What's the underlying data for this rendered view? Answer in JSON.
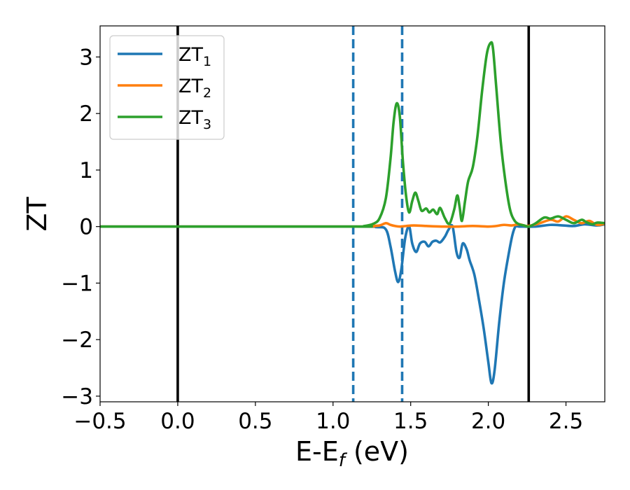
{
  "chart_data": {
    "type": "line",
    "xlabel": {
      "main": "E-E",
      "sub": "f",
      "tail": " (eV)"
    },
    "ylabel": "ZT",
    "xlim": [
      -0.5,
      2.75
    ],
    "ylim": [
      -3.1,
      3.55
    ],
    "xticks": [
      -0.5,
      0.0,
      0.5,
      1.0,
      1.5,
      2.0,
      2.5
    ],
    "xtick_labels": [
      "−0.5",
      "0.0",
      "0.5",
      "1.0",
      "1.5",
      "2.0",
      "2.5"
    ],
    "yticks": [
      -3,
      -2,
      -1,
      0,
      1,
      2,
      3
    ],
    "ytick_labels": [
      "−3",
      "−2",
      "−1",
      "0",
      "1",
      "2",
      "3"
    ],
    "grid": false,
    "legend_position": "upper-left",
    "series": [
      {
        "name": "ZT",
        "name_sub": "1",
        "color": "#1f77b4",
        "x": [
          -0.5,
          1.1,
          1.28,
          1.34,
          1.37,
          1.4,
          1.42,
          1.44,
          1.465,
          1.49,
          1.51,
          1.535,
          1.56,
          1.59,
          1.615,
          1.64,
          1.665,
          1.69,
          1.72,
          1.745,
          1.77,
          1.795,
          1.815,
          1.835,
          1.86,
          1.88,
          1.91,
          1.94,
          1.97,
          2.0,
          2.02,
          2.04,
          2.07,
          2.1,
          2.13,
          2.155,
          2.175,
          2.2,
          2.3,
          2.4,
          2.48,
          2.55,
          2.62,
          2.7,
          2.75
        ],
        "y": [
          0,
          0,
          -0.01,
          -0.05,
          -0.35,
          -0.8,
          -0.98,
          -0.75,
          -0.2,
          0.0,
          -0.3,
          -0.45,
          -0.3,
          -0.27,
          -0.35,
          -0.27,
          -0.25,
          -0.28,
          -0.18,
          -0.05,
          0.0,
          -0.45,
          -0.55,
          -0.3,
          -0.4,
          -0.6,
          -0.85,
          -1.3,
          -1.8,
          -2.4,
          -2.77,
          -2.55,
          -1.7,
          -1.0,
          -0.5,
          -0.15,
          0.0,
          0.0,
          0.0,
          0.03,
          0.02,
          0.01,
          0.04,
          0.02,
          0.04
        ]
      },
      {
        "name": "ZT",
        "name_sub": "2",
        "color": "#ff7f0e",
        "x": [
          -0.5,
          1.1,
          1.24,
          1.3,
          1.34,
          1.37,
          1.4,
          1.43,
          1.47,
          1.52,
          1.6,
          1.7,
          1.8,
          1.9,
          2.0,
          2.05,
          2.1,
          2.15,
          2.2,
          2.25,
          2.32,
          2.4,
          2.45,
          2.5,
          2.55,
          2.6,
          2.65,
          2.7,
          2.75
        ],
        "y": [
          0,
          0,
          0.01,
          0.02,
          0.06,
          0.03,
          0.01,
          0.0,
          0.01,
          0.02,
          0.01,
          0.0,
          0.0,
          0.01,
          0.0,
          0.01,
          0.03,
          0.02,
          0.04,
          0.01,
          0.05,
          0.12,
          0.09,
          0.18,
          0.12,
          0.06,
          0.1,
          0.03,
          0.05
        ]
      },
      {
        "name": "ZT",
        "name_sub": "3",
        "color": "#2ca02c",
        "x": [
          -0.5,
          1.1,
          1.2,
          1.26,
          1.3,
          1.34,
          1.37,
          1.39,
          1.41,
          1.43,
          1.45,
          1.47,
          1.49,
          1.51,
          1.53,
          1.55,
          1.57,
          1.6,
          1.62,
          1.645,
          1.67,
          1.69,
          1.72,
          1.75,
          1.78,
          1.8,
          1.815,
          1.83,
          1.85,
          1.87,
          1.9,
          1.93,
          1.96,
          1.99,
          2.015,
          2.03,
          2.05,
          2.08,
          2.11,
          2.14,
          2.17,
          2.2,
          2.23,
          2.26,
          2.3,
          2.36,
          2.4,
          2.45,
          2.5,
          2.55,
          2.6,
          2.63,
          2.67,
          2.7,
          2.75
        ],
        "y": [
          0,
          0,
          0.01,
          0.05,
          0.15,
          0.5,
          1.2,
          1.85,
          2.18,
          1.95,
          1.15,
          0.55,
          0.25,
          0.45,
          0.6,
          0.45,
          0.28,
          0.32,
          0.25,
          0.3,
          0.22,
          0.33,
          0.15,
          0.05,
          0.3,
          0.55,
          0.35,
          0.1,
          0.45,
          0.8,
          1.05,
          1.6,
          2.4,
          3.05,
          3.25,
          3.15,
          2.5,
          1.5,
          0.8,
          0.3,
          0.1,
          0.04,
          0.02,
          0.0,
          0.05,
          0.16,
          0.14,
          0.18,
          0.12,
          0.06,
          0.12,
          0.08,
          0.04,
          0.07,
          0.06
        ]
      }
    ],
    "vlines": [
      {
        "x": 0.0,
        "style": "solid",
        "color": "#000000"
      },
      {
        "x": 2.26,
        "style": "solid",
        "color": "#000000"
      },
      {
        "x": 1.13,
        "style": "dashed",
        "color": "#1f77b4"
      },
      {
        "x": 1.445,
        "style": "dashed",
        "color": "#1f77b4"
      }
    ]
  }
}
